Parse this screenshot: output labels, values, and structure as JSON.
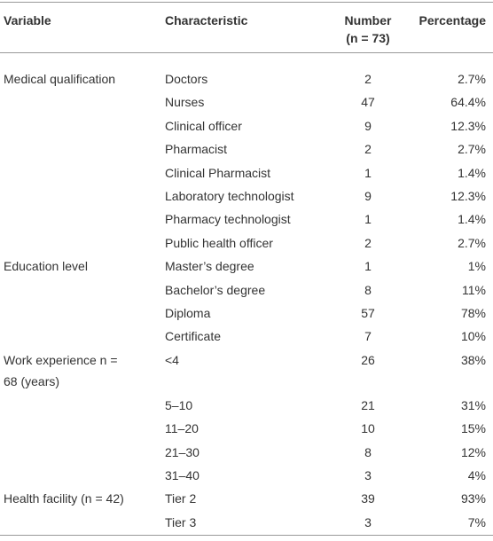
{
  "table": {
    "header": {
      "variable": "Variable",
      "characteristic": "Characteristic",
      "number": "Number",
      "number_n": "(n = 73)",
      "percentage": "Percentage"
    },
    "groups": [
      {
        "variable": "Medical qualification",
        "rows": [
          [
            "Doctors",
            2,
            "2.7%"
          ],
          [
            "Nurses",
            47,
            "64.4%"
          ],
          [
            "Clinical officer",
            9,
            "12.3%"
          ],
          [
            "Pharmacist",
            2,
            "2.7%"
          ],
          [
            "Clinical Pharmacist",
            1,
            "1.4%"
          ],
          [
            "Laboratory technologist",
            9,
            "12.3%"
          ],
          [
            "Pharmacy technologist",
            1,
            "1.4%"
          ],
          [
            "Public health officer",
            2,
            "2.7%"
          ]
        ]
      },
      {
        "variable": "Education level",
        "rows": [
          [
            "Master’s degree",
            1,
            "1%"
          ],
          [
            "Bachelor’s degree",
            8,
            "11%"
          ],
          [
            "Diploma",
            57,
            "78%"
          ],
          [
            "Certificate",
            7,
            "10%"
          ]
        ]
      },
      {
        "variable": "Work experience n = 68 (years)",
        "rows": [
          [
            "<4",
            26,
            "38%"
          ],
          [
            "5–10",
            21,
            "31%"
          ],
          [
            "11–20",
            10,
            "15%"
          ],
          [
            "21–30",
            8,
            "12%"
          ],
          [
            "31–40",
            3,
            "4%"
          ]
        ]
      },
      {
        "variable": "Health facility (n = 42)",
        "rows": [
          [
            "Tier 2",
            39,
            "93%"
          ],
          [
            "Tier 3",
            3,
            "7%"
          ]
        ]
      }
    ]
  }
}
